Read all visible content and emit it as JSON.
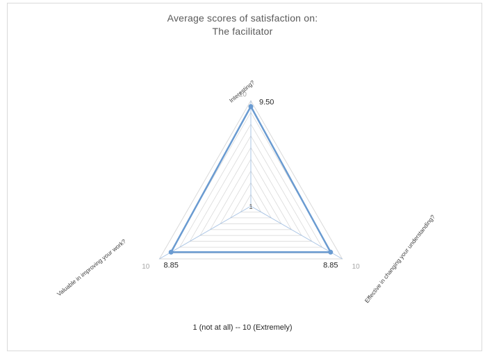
{
  "chart_data": {
    "type": "radar",
    "title_line1": "Average scores of satisfaction on:",
    "title_line2": "The facilitator",
    "note": "1 (not at all)  -- 10 (Extremely)",
    "axis_min": 1,
    "axis_max": 10,
    "axis_min_label": "1",
    "axis_max_label": "10",
    "categories": [
      "Interesting?",
      "Effective in changing your understanding?",
      "Valuable in improving your work?"
    ],
    "values": [
      9.5,
      8.85,
      8.85
    ],
    "value_labels": [
      "9.50",
      "8.85",
      "8.85"
    ],
    "grid": true,
    "series_color": "#6a9bd1",
    "grid_color": "#d9d9d9"
  }
}
